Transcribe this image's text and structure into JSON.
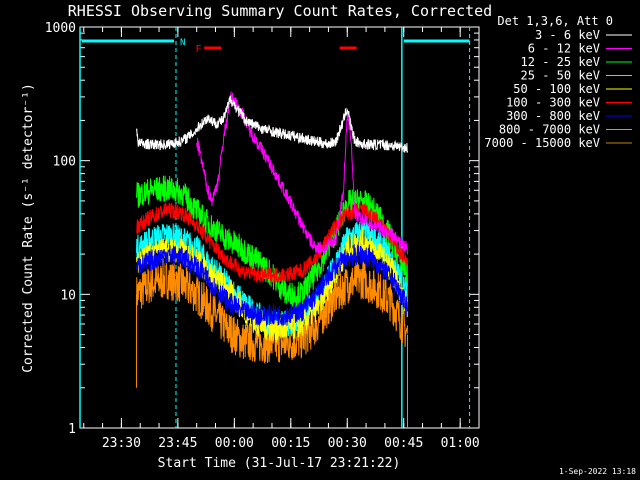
{
  "chart_data": {
    "type": "line",
    "title": "RHESSI Observing Summary Count Rates, Corrected",
    "xlabel": "Start Time (31-Jul-17 23:21:22)",
    "ylabel": "Corrected Count Rate (s⁻¹ detector⁻¹)",
    "yscale": "log",
    "ylim": [
      1,
      1000
    ],
    "xlim_minutes": [
      -3,
      103
    ],
    "x_ticks": [
      {
        "m": 8,
        "label": "23:30"
      },
      {
        "m": 23,
        "label": "23:45"
      },
      {
        "m": 38,
        "label": "00:00"
      },
      {
        "m": 53,
        "label": "00:15"
      },
      {
        "m": 68,
        "label": "00:30"
      },
      {
        "m": 83,
        "label": "00:45"
      },
      {
        "m": 98,
        "label": "01:00"
      }
    ],
    "y_ticks": [
      {
        "v": 1,
        "label": "1"
      },
      {
        "v": 10,
        "label": "10"
      },
      {
        "v": 100,
        "label": "100"
      },
      {
        "v": 1000,
        "label": "1000"
      }
    ],
    "legend_header": "Det 1,3,6, Att 0",
    "legend_position": "right",
    "series": [
      {
        "name": "3 - 6 keV",
        "color": "#ffffff",
        "points": [
          [
            12,
            175
          ],
          [
            12.5,
            135
          ],
          [
            16,
            132
          ],
          [
            20,
            132
          ],
          [
            24,
            140
          ],
          [
            27,
            160
          ],
          [
            29,
            185
          ],
          [
            31,
            210
          ],
          [
            33,
            190
          ],
          [
            35,
            200
          ],
          [
            37,
            290
          ],
          [
            38.5,
            250
          ],
          [
            41,
            200
          ],
          [
            45,
            175
          ],
          [
            50,
            160
          ],
          [
            55,
            150
          ],
          [
            59,
            140
          ],
          [
            63,
            133
          ],
          [
            65,
            140
          ],
          [
            67,
            200
          ],
          [
            68,
            250
          ],
          [
            69,
            180
          ],
          [
            70,
            140
          ],
          [
            72,
            133
          ],
          [
            76,
            132
          ],
          [
            80,
            130
          ],
          [
            84,
            125
          ]
        ]
      },
      {
        "name": "6 - 12 keV",
        "color": "#ff00ff",
        "points": [
          [
            28,
            140
          ],
          [
            29,
            110
          ],
          [
            30,
            80
          ],
          [
            31,
            60
          ],
          [
            32,
            50
          ],
          [
            33,
            60
          ],
          [
            34,
            80
          ],
          [
            35,
            140
          ],
          [
            36,
            200
          ],
          [
            37,
            300
          ],
          [
            38.5,
            270
          ],
          [
            40,
            230
          ],
          [
            42,
            170
          ],
          [
            45,
            125
          ],
          [
            47,
            100
          ],
          [
            50,
            70
          ],
          [
            53,
            48
          ],
          [
            56,
            33
          ],
          [
            59,
            23
          ],
          [
            62,
            22
          ],
          [
            65,
            26
          ],
          [
            67,
            60
          ],
          [
            68,
            220
          ],
          [
            69,
            150
          ],
          [
            70,
            40
          ],
          [
            72,
            36
          ],
          [
            76,
            32
          ],
          [
            80,
            28
          ],
          [
            84,
            22
          ]
        ]
      },
      {
        "name": "12 - 25 keV",
        "color": "#00ff00",
        "points": [
          [
            12,
            55
          ],
          [
            16,
            60
          ],
          [
            20,
            62
          ],
          [
            24,
            58
          ],
          [
            28,
            42
          ],
          [
            32,
            32
          ],
          [
            36,
            26
          ],
          [
            40,
            22
          ],
          [
            44,
            18
          ],
          [
            48,
            14
          ],
          [
            52,
            10
          ],
          [
            56,
            10
          ],
          [
            60,
            15
          ],
          [
            64,
            26
          ],
          [
            68,
            48
          ],
          [
            72,
            50
          ],
          [
            76,
            40
          ],
          [
            80,
            25
          ],
          [
            84,
            14
          ]
        ]
      },
      {
        "name": "25 - 50 keV",
        "color": "#00ffff",
        "points": [
          [
            12,
            22
          ],
          [
            16,
            26
          ],
          [
            20,
            28
          ],
          [
            24,
            26
          ],
          [
            28,
            22
          ],
          [
            32,
            16
          ],
          [
            36,
            12
          ],
          [
            40,
            9
          ],
          [
            44,
            7
          ],
          [
            48,
            6
          ],
          [
            52,
            6
          ],
          [
            56,
            7
          ],
          [
            60,
            9
          ],
          [
            64,
            15
          ],
          [
            68,
            26
          ],
          [
            72,
            30
          ],
          [
            76,
            25
          ],
          [
            80,
            18
          ],
          [
            84,
            10
          ]
        ]
      },
      {
        "name": "50 - 100 keV",
        "color": "#ffff00",
        "points": [
          [
            12,
            18
          ],
          [
            16,
            20
          ],
          [
            20,
            22
          ],
          [
            24,
            21
          ],
          [
            28,
            18
          ],
          [
            32,
            14
          ],
          [
            36,
            11
          ],
          [
            40,
            8
          ],
          [
            44,
            6
          ],
          [
            48,
            5.5
          ],
          [
            52,
            5.5
          ],
          [
            56,
            6
          ],
          [
            60,
            8
          ],
          [
            64,
            13
          ],
          [
            68,
            22
          ],
          [
            72,
            25
          ],
          [
            76,
            21
          ],
          [
            80,
            15
          ],
          [
            84,
            8
          ]
        ]
      },
      {
        "name": "100 - 300 keV",
        "color": "#ff0000",
        "points": [
          [
            12,
            32
          ],
          [
            16,
            38
          ],
          [
            20,
            43
          ],
          [
            24,
            41
          ],
          [
            28,
            33
          ],
          [
            32,
            24
          ],
          [
            36,
            18
          ],
          [
            40,
            15
          ],
          [
            44,
            14
          ],
          [
            48,
            14
          ],
          [
            52,
            14
          ],
          [
            56,
            15
          ],
          [
            60,
            19
          ],
          [
            64,
            30
          ],
          [
            68,
            40
          ],
          [
            72,
            43
          ],
          [
            76,
            36
          ],
          [
            80,
            25
          ],
          [
            84,
            17
          ]
        ]
      },
      {
        "name": "300 - 800 keV",
        "color": "#0000ff",
        "points": [
          [
            12,
            16
          ],
          [
            16,
            18
          ],
          [
            20,
            20
          ],
          [
            24,
            19
          ],
          [
            28,
            16
          ],
          [
            32,
            12
          ],
          [
            36,
            9
          ],
          [
            40,
            7.5
          ],
          [
            44,
            7
          ],
          [
            48,
            7
          ],
          [
            52,
            7
          ],
          [
            56,
            7.5
          ],
          [
            60,
            10
          ],
          [
            64,
            15
          ],
          [
            68,
            19
          ],
          [
            72,
            20
          ],
          [
            76,
            17
          ],
          [
            80,
            13
          ],
          [
            84,
            8
          ]
        ]
      },
      {
        "name": "800 - 7000 keV",
        "color": "#ff8c00",
        "points": [
          [
            12,
            10
          ],
          [
            16,
            12
          ],
          [
            20,
            13
          ],
          [
            24,
            12
          ],
          [
            28,
            10
          ],
          [
            32,
            7.5
          ],
          [
            36,
            5.5
          ],
          [
            40,
            4.5
          ],
          [
            44,
            4.3
          ],
          [
            48,
            4.3
          ],
          [
            52,
            4.3
          ],
          [
            56,
            4.6
          ],
          [
            60,
            6
          ],
          [
            64,
            9
          ],
          [
            68,
            12
          ],
          [
            72,
            13
          ],
          [
            76,
            11
          ],
          [
            80,
            8.5
          ],
          [
            84,
            5
          ]
        ]
      },
      {
        "name": "7000 - 15000 keV",
        "color": "#b8860b",
        "points": []
      }
    ],
    "annotations": [
      {
        "label": "N",
        "color": "#00ffff"
      },
      {
        "label": "F",
        "color": "#ff0000"
      }
    ],
    "timestamp": "1-Sep-2022 13:18"
  }
}
